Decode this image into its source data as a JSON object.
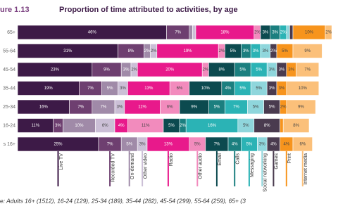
{
  "chart_data": {
    "type": "stacked-bar-horizontal",
    "figure_label": "ure 1.13",
    "title": "Proportion of time attributed to activities, by age",
    "source": "e: Adults 16+ (1512), 16-24 (129), 25-34 (189), 35-44 (282), 45-54 (299), 55-64 (259), 65+ (3",
    "categories": [
      "65+",
      "55-64",
      "45-54",
      "35-44",
      "25-34",
      "16-24",
      "s 16+"
    ],
    "xlim": [
      0,
      100
    ],
    "series": [
      {
        "name": "Live TV",
        "color": "#3d1a47",
        "values": [
          46,
          31,
          23,
          19,
          16,
          11,
          25
        ],
        "value_labels": [
          "46%",
          "31%",
          "23%",
          "19%",
          "16%",
          "11%",
          "25%"
        ]
      },
      {
        "name": "Recorded TV",
        "color": "#6e3f70",
        "values": [
          7,
          8,
          9,
          7,
          7,
          3,
          7
        ],
        "value_labels": [
          "7%",
          "8%",
          "9%",
          "7%",
          "7%",
          "3%",
          "7%"
        ]
      },
      {
        "name": "On-demand",
        "color": "#a08aa8",
        "values": [
          1,
          2,
          3,
          5,
          7,
          10,
          5
        ],
        "value_labels": [
          null,
          "2%",
          "3%",
          "5%",
          "7%",
          "10%",
          "5%"
        ]
      },
      {
        "name": "Other video",
        "color": "#cbbfd6",
        "values": [
          1,
          2,
          2,
          3,
          3,
          6,
          3
        ],
        "value_labels": [
          null,
          "2%",
          "2%",
          "3%",
          "3%",
          "6%",
          "3%"
        ]
      },
      {
        "name": "Radio",
        "color": "#e8198b",
        "values": [
          18,
          19,
          20,
          13,
          11,
          4,
          13
        ],
        "value_labels": [
          "18%",
          "19%",
          "20%",
          "13%",
          "11%",
          "4%",
          "13%"
        ]
      },
      {
        "name": "Other audio",
        "color": "#f28bbd",
        "values": [
          2,
          2,
          2,
          6,
          6,
          11,
          5
        ],
        "value_labels": [
          "2%",
          "2%",
          "2%",
          "6%",
          "6%",
          "11%",
          "5%"
        ]
      },
      {
        "name": "Email",
        "color": "#0c4a4f",
        "values": [
          3,
          5,
          8,
          10,
          9,
          5,
          7
        ],
        "value_labels": [
          "3%",
          "5%",
          "8%",
          "10%",
          "9%",
          "5%",
          "7%"
        ]
      },
      {
        "name": "Calls",
        "color": "#1b7f7f",
        "values": [
          3,
          3,
          5,
          4,
          5,
          2,
          4
        ],
        "value_labels": [
          "3%",
          "3%",
          "5%",
          "4%",
          "5%",
          "2%",
          "4%"
        ]
      },
      {
        "name": "Messaging",
        "color": "#2bb3b5",
        "values": [
          2,
          3,
          5,
          5,
          7,
          16,
          5
        ],
        "value_labels": [
          "2%",
          "3%",
          "5%",
          "5%",
          "7%",
          "16%",
          "5%"
        ]
      },
      {
        "name": "Social networking",
        "color": "#8fd6dc",
        "values": [
          1,
          3,
          3,
          5,
          5,
          5,
          3
        ],
        "value_labels": [
          null,
          "3%",
          "3%",
          "5%",
          "5%",
          "5%",
          "3%"
        ]
      },
      {
        "name": "Games",
        "color": "#4a3b4f",
        "values": [
          1,
          2,
          3,
          3,
          5,
          8,
          4
        ],
        "value_labels": [
          null,
          "2%",
          "3%",
          "3%",
          "5%",
          "8%",
          "4%"
        ]
      },
      {
        "name": "Print",
        "color": "#f7941d",
        "values": [
          10,
          5,
          3,
          3,
          2,
          1,
          4
        ],
        "value_labels": [
          "10%",
          "5%",
          "3%",
          "3%",
          "2%",
          null,
          "4%"
        ]
      },
      {
        "name": "Internet media",
        "color": "#fbc07a",
        "values": [
          2,
          9,
          7,
          10,
          9,
          8,
          6
        ],
        "value_labels": [
          "2%",
          "9%",
          "7%",
          "10%",
          "9%",
          "8%",
          "6%"
        ]
      }
    ]
  }
}
